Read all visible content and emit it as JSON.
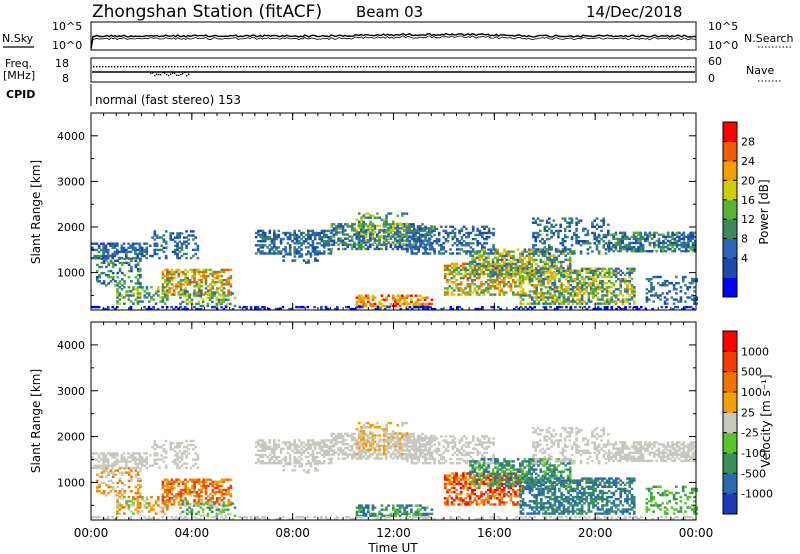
{
  "header": {
    "station": "Zhongshan Station (fitACF)",
    "beam": "Beam 03",
    "date": "14/Dec/2018"
  },
  "chart_data": [
    {
      "type": "line",
      "panel": "noise",
      "left_label": "N.Sky",
      "right_label": "N.Search",
      "left_ticks": [
        "10^5",
        "10^0"
      ],
      "right_ticks": [
        "10^5",
        "10^0"
      ]
    },
    {
      "type": "line",
      "panel": "frequency",
      "left_label": "Freq.",
      "left_unit": "[MHz]",
      "left_ticks": [
        "18",
        "8"
      ],
      "right_label": "Nave",
      "right_ticks": [
        "60",
        "0"
      ],
      "cpid_label": "CPID",
      "cpid_text": "normal (fast stereo) 153"
    },
    {
      "type": "heatmap",
      "panel": "power",
      "ylabel": "Slant Range [km]",
      "y_ticks": [
        "4000",
        "3000",
        "2000",
        "1000"
      ],
      "x_ticks": [
        "00:00",
        "04:00",
        "08:00",
        "12:00",
        "16:00",
        "20:00",
        "00:00"
      ],
      "ylim": [
        180,
        4500
      ],
      "colorbar_label": "Power [dB]",
      "colorbar_ticks": [
        "28",
        "24",
        "20",
        "16",
        "12",
        "8",
        "4"
      ],
      "colors": [
        "#0000ff",
        "#1c4aa8",
        "#2b66b8",
        "#3c8a5a",
        "#59b234",
        "#cfcf00",
        "#f29d00",
        "#f25c00",
        "#ff0000"
      ]
    },
    {
      "type": "heatmap",
      "panel": "velocity",
      "ylabel": "Slant Range [km]",
      "y_ticks": [
        "4000",
        "3000",
        "2000",
        "1000"
      ],
      "x_ticks": [
        "00:00",
        "04:00",
        "08:00",
        "12:00",
        "16:00",
        "20:00",
        "00:00"
      ],
      "xlabel": "Time UT",
      "ylim": [
        180,
        4500
      ],
      "colorbar_label": "Velocity [m s⁻¹]",
      "colorbar_ticks": [
        "1000",
        "500",
        "100",
        "25",
        "-25",
        "-100",
        "-500",
        "-1000"
      ],
      "colors": [
        "#1c3cb8",
        "#2a6ab0",
        "#3c8f5c",
        "#5ac42a",
        "#c8c8c0",
        "#f2a000",
        "#f27300",
        "#f23c00",
        "#ff0000"
      ]
    }
  ]
}
